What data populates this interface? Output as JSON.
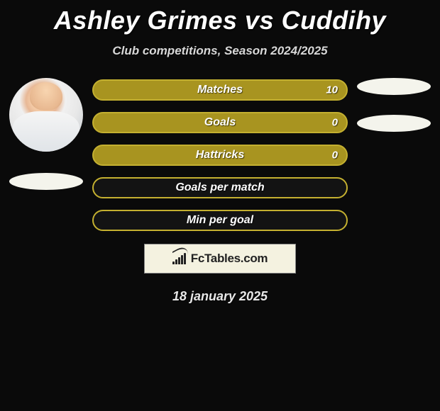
{
  "title": "Ashley Grimes vs Cuddihy",
  "subtitle": "Club competitions, Season 2024/2025",
  "date": "18 january 2025",
  "brand": "FcTables.com",
  "colors": {
    "background": "#0a0a0a",
    "bar_fill": "#a89420",
    "bar_border": "#c4b030",
    "bar_alt_fill": "#131313",
    "bar_alt_border": "#c4b030",
    "pill": "#f4f4ec",
    "brand_box_bg": "#f4f2e0",
    "text": "#ffffff"
  },
  "stats": [
    {
      "label": "Matches",
      "value": "10",
      "filled": true
    },
    {
      "label": "Goals",
      "value": "0",
      "filled": true
    },
    {
      "label": "Hattricks",
      "value": "0",
      "filled": true
    },
    {
      "label": "Goals per match",
      "value": "",
      "filled": false
    },
    {
      "label": "Min per goal",
      "value": "",
      "filled": false
    }
  ],
  "brand_bars": [
    4,
    7,
    10,
    13,
    16
  ]
}
